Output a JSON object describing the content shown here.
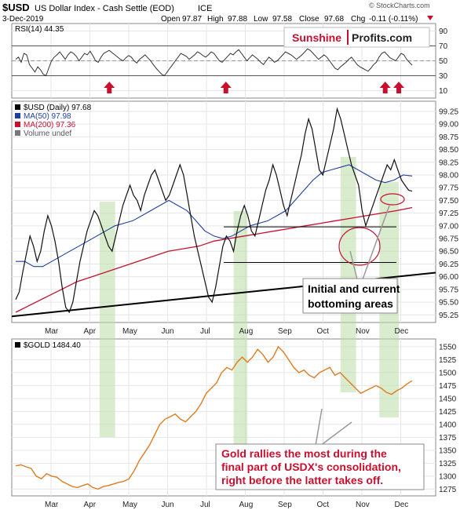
{
  "header": {
    "symbol": "$USD",
    "name": "US Dollar Index - Cash Settle (EOD)",
    "exchange": "ICE",
    "source": "© StockCharts.com",
    "date": "3-Dec-2019",
    "open_label": "Open",
    "open": "97.87",
    "high_label": "High",
    "high": "97.88",
    "low_label": "Low",
    "low": "97.58",
    "close_label": "Close",
    "close": "97.68",
    "chg_label": "Chg",
    "chg": "-0.11 (-0.11%)"
  },
  "brand": {
    "part1": "Sunshine",
    "part2": "Profits.com",
    "color": "#c8102e"
  },
  "colors": {
    "price": "#000000",
    "price_down": "#c8102e",
    "ma50": "#1f3f9f",
    "ma200": "#c8102e",
    "gold": "#e07b20",
    "band": "#b9dca6",
    "arrow": "#c8102e"
  },
  "chart_data": [
    {
      "type": "line",
      "title": "RSI(14) 44.35",
      "ylim": [
        0,
        100
      ],
      "yticks": [
        10,
        30,
        50,
        70,
        90
      ],
      "reference_lines": [
        30,
        50,
        70
      ],
      "months": [
        "Mar",
        "Apr",
        "May",
        "Jun",
        "Jul",
        "Aug",
        "Sep",
        "Oct",
        "Nov",
        "Dec"
      ],
      "series": [
        {
          "name": "RSI(14)",
          "values": [
            52,
            55,
            48,
            60,
            58,
            45,
            40,
            35,
            42,
            38,
            32,
            30,
            40,
            50,
            55,
            58,
            62,
            57,
            52,
            58,
            62,
            60,
            56,
            50,
            55,
            60,
            58,
            63,
            57,
            50,
            48,
            55,
            60,
            62,
            64,
            61,
            58,
            55,
            52,
            50,
            54,
            57,
            55,
            50,
            47,
            52,
            55,
            58,
            54,
            50,
            45,
            40,
            36,
            32,
            30,
            35,
            40,
            45,
            50,
            55,
            60,
            58,
            56,
            52,
            55,
            58,
            62,
            60,
            57,
            55,
            58,
            62,
            60,
            55,
            50,
            48,
            52,
            56,
            60,
            58,
            62,
            65,
            60,
            55,
            50,
            54,
            58,
            55,
            52,
            48,
            45,
            50,
            55,
            52,
            48,
            50,
            54,
            58,
            62,
            60,
            58,
            55,
            52,
            55,
            58,
            62,
            66,
            64,
            60,
            56,
            52,
            55,
            58,
            55,
            50,
            45,
            40,
            38,
            42,
            45,
            48,
            52,
            55,
            50,
            45,
            42,
            40,
            38,
            36,
            40,
            45,
            48,
            55,
            60,
            62,
            58,
            54,
            52,
            50,
            55,
            60,
            58,
            52,
            48,
            44
          ]
        }
      ],
      "markers_months_index": [
        1.5,
        4.5,
        8.6,
        8.95
      ]
    },
    {
      "type": "line",
      "title": "$USD (Daily) 97.68",
      "legend": [
        "$USD (Daily) 97.68",
        "MA(50) 97.98",
        "MA(200) 97.36",
        "Volume undef"
      ],
      "ylim": [
        95.1,
        99.45
      ],
      "yticks": [
        95.25,
        95.5,
        95.75,
        96.0,
        96.25,
        96.5,
        96.75,
        97.0,
        97.25,
        97.5,
        97.75,
        98.0,
        98.25,
        98.5,
        98.75,
        99.0,
        99.25
      ],
      "months": [
        "Mar",
        "Apr",
        "May",
        "Jun",
        "Jul",
        "Aug",
        "Sep",
        "Oct",
        "Nov",
        "Dec"
      ],
      "series": [
        {
          "name": "$USD (Daily)",
          "values": [
            95.55,
            95.7,
            96.1,
            96.45,
            96.8,
            96.6,
            96.3,
            96.5,
            96.9,
            97.2,
            97.0,
            96.7,
            96.3,
            95.8,
            95.4,
            95.3,
            95.5,
            95.9,
            96.3,
            96.6,
            96.9,
            97.1,
            97.3,
            97.2,
            97.0,
            96.8,
            96.6,
            96.5,
            96.8,
            97.1,
            97.4,
            97.6,
            97.8,
            97.6,
            97.5,
            97.3,
            97.6,
            97.8,
            98.0,
            98.1,
            97.9,
            97.7,
            97.5,
            97.6,
            97.8,
            98.0,
            98.2,
            98.0,
            97.6,
            97.2,
            96.8,
            96.5,
            96.2,
            95.9,
            95.6,
            95.5,
            95.8,
            96.2,
            96.6,
            96.8,
            96.7,
            96.5,
            96.9,
            97.2,
            97.4,
            97.2,
            96.9,
            96.8,
            97.1,
            97.4,
            97.7,
            97.9,
            98.2,
            98.0,
            97.7,
            97.4,
            97.2,
            97.5,
            97.8,
            98.1,
            98.4,
            98.8,
            99.1,
            98.9,
            98.5,
            98.1,
            98.0,
            98.3,
            98.6,
            98.9,
            99.3,
            99.1,
            98.8,
            98.5,
            98.2,
            98.0,
            97.8,
            97.3,
            97.0,
            97.2,
            97.4,
            97.6,
            97.8,
            98.0,
            98.2,
            98.1,
            98.3,
            98.1,
            97.9,
            97.8,
            97.7,
            97.68
          ]
        },
        {
          "name": "MA(50)",
          "values": [
            96.3,
            96.3,
            96.2,
            96.2,
            96.3,
            96.4,
            96.5,
            96.6,
            96.7,
            96.8,
            96.9,
            97.0,
            97.05,
            97.1,
            97.2,
            97.3,
            97.4,
            97.5,
            97.4,
            97.3,
            97.1,
            96.9,
            96.8,
            96.75,
            96.8,
            96.9,
            97.0,
            97.05,
            97.1,
            97.2,
            97.3,
            97.5,
            97.7,
            97.9,
            98.05,
            98.1,
            98.15,
            98.2,
            98.1,
            98.0,
            97.9,
            97.85,
            97.9,
            98.0,
            97.98
          ]
        },
        {
          "name": "MA(200)",
          "values": [
            95.3,
            95.45,
            95.6,
            95.75,
            95.9,
            96.0,
            96.1,
            96.2,
            96.3,
            96.4,
            96.5,
            96.55,
            96.6,
            96.7,
            96.75,
            96.8,
            96.85,
            96.9,
            96.95,
            97.0,
            97.05,
            97.1,
            97.15,
            97.2,
            97.25,
            97.3,
            97.36
          ]
        }
      ],
      "annotation_text": [
        "Initial and current",
        "bottoming areas"
      ],
      "horizontal_levels": [
        96.98,
        96.28
      ],
      "trend_line": {
        "from": [
          0,
          95.2
        ],
        "to": [
          9.6,
          96.1
        ]
      }
    },
    {
      "type": "line",
      "title": "$GOLD 1484.40",
      "ylim": [
        1262,
        1565
      ],
      "yticks": [
        1275,
        1300,
        1325,
        1350,
        1375,
        1400,
        1425,
        1450,
        1475,
        1500,
        1525,
        1550
      ],
      "months": [
        "Mar",
        "Apr",
        "May",
        "Jun",
        "Jul",
        "Aug",
        "Sep",
        "Oct",
        "Nov",
        "Dec"
      ],
      "series": [
        {
          "name": "$GOLD",
          "values": [
            1320,
            1322,
            1318,
            1315,
            1300,
            1295,
            1305,
            1300,
            1298,
            1290,
            1285,
            1280,
            1278,
            1282,
            1285,
            1278,
            1275,
            1280,
            1282,
            1285,
            1288,
            1290,
            1295,
            1310,
            1330,
            1345,
            1360,
            1380,
            1400,
            1410,
            1415,
            1420,
            1410,
            1405,
            1415,
            1425,
            1440,
            1460,
            1470,
            1480,
            1500,
            1510,
            1505,
            1520,
            1530,
            1520,
            1530,
            1545,
            1535,
            1520,
            1530,
            1550,
            1540,
            1525,
            1510,
            1500,
            1505,
            1495,
            1490,
            1500,
            1505,
            1510,
            1495,
            1500,
            1490,
            1480,
            1470,
            1460,
            1465,
            1470,
            1475,
            1470,
            1462,
            1458,
            1465,
            1470,
            1478,
            1484.4
          ]
        }
      ],
      "annotation_text": [
        "Gold rallies the most during the",
        "final part of USDX's consolidation,",
        "right before the latter takes off."
      ]
    }
  ],
  "bands_months": [
    [
      1.25,
      1.65
    ],
    [
      4.7,
      5.05
    ],
    [
      7.45,
      7.85
    ],
    [
      8.45,
      8.95
    ]
  ],
  "rsi_label": "RSI(14) 44.35",
  "price_legend": {
    "usd": "$USD (Daily) 97.68",
    "ma50": "MA(50) 97.98",
    "ma200": "MA(200) 97.36",
    "volume": "Volume undef"
  },
  "gold_label": "$GOLD 1484.40",
  "bottom_note": {
    "l1": "Initial and current",
    "l2": "bottoming areas"
  },
  "gold_note": {
    "l1": "Gold rallies the most during the",
    "l2": "final part of USDX's consolidation,",
    "l3": "right before the latter takes off."
  }
}
